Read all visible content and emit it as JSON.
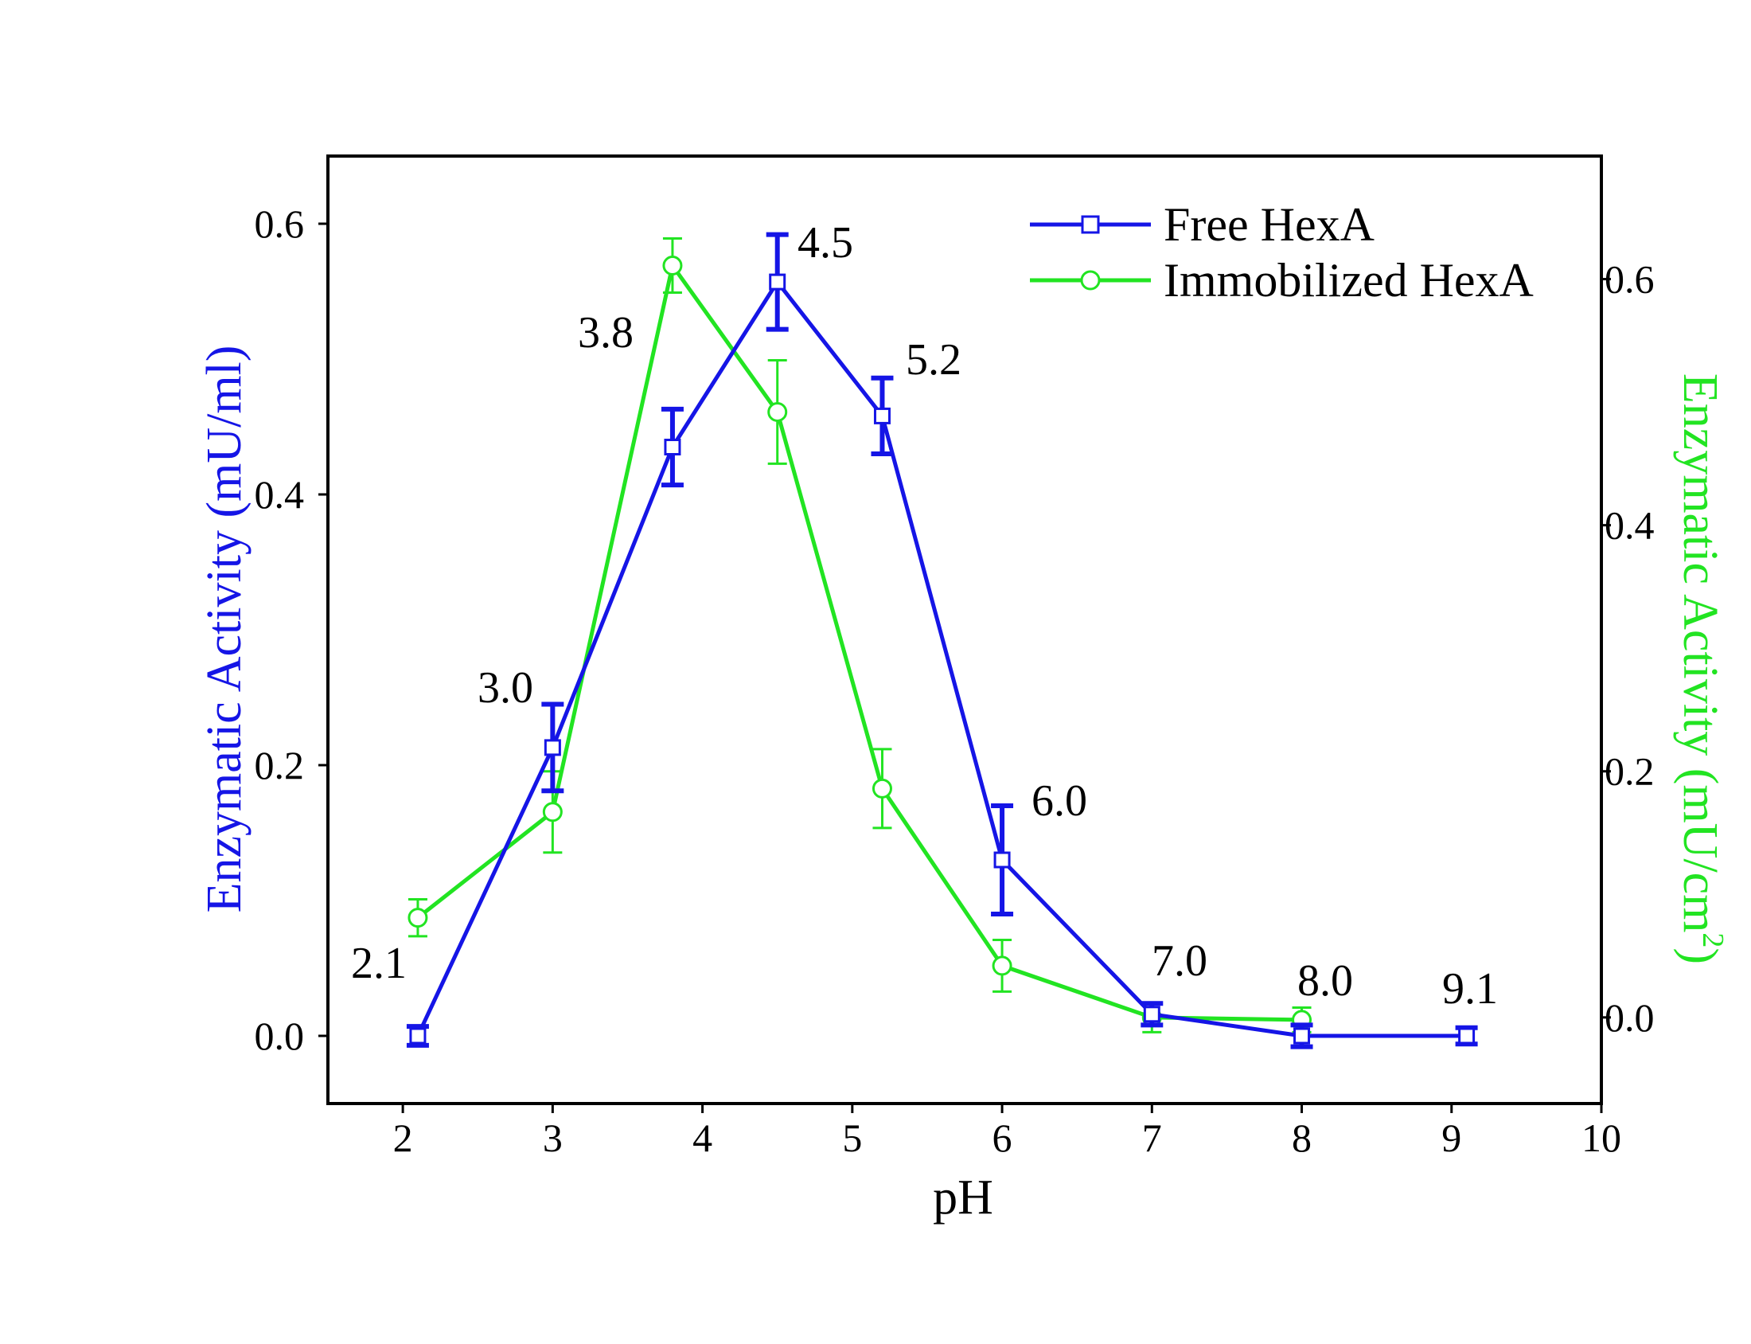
{
  "chart_data": {
    "type": "line",
    "title": "",
    "xlabel": "pH",
    "ylabel_left": "Enzymatic Activity (mU/ml)",
    "ylabel_right": "Enzymatic Activity (mU/cm",
    "ylabel_right_superscript": "2",
    "ylabel_right_suffix": ")",
    "xlim": [
      1.5,
      10
    ],
    "ylim_left": [
      -0.05,
      0.65
    ],
    "ylim_right": [
      -0.07,
      0.7
    ],
    "x_ticks": [
      "2",
      "3",
      "4",
      "5",
      "6",
      "7",
      "8",
      "9",
      "10"
    ],
    "y_ticks_left": [
      "0.0",
      "0.2",
      "0.4",
      "0.6"
    ],
    "y_ticks_right": [
      "0.0",
      "0.2",
      "0.4",
      "0.6"
    ],
    "legend_position": "top-right",
    "series": [
      {
        "name": "Free HexA",
        "axis": "left",
        "color": "#1515e6",
        "marker": "square",
        "x": [
          2.1,
          3.0,
          3.8,
          4.5,
          5.2,
          6.0,
          7.0,
          8.0,
          9.1
        ],
        "y": [
          0.0,
          0.213,
          0.435,
          0.557,
          0.458,
          0.13,
          0.016,
          0.0,
          0.0
        ],
        "err": [
          0.007,
          0.032,
          0.028,
          0.035,
          0.028,
          0.04,
          0.008,
          0.008,
          0.006
        ]
      },
      {
        "name": "Immobilized HexA",
        "axis": "right",
        "color": "#22e422",
        "marker": "circle",
        "x": [
          2.1,
          3.0,
          3.8,
          4.5,
          5.2,
          6.0,
          7.0,
          8.0
        ],
        "y": [
          0.081,
          0.167,
          0.611,
          0.492,
          0.186,
          0.042,
          0.0,
          -0.002
        ],
        "err": [
          0.015,
          0.033,
          0.022,
          0.042,
          0.032,
          0.021,
          0.012,
          0.01
        ]
      }
    ],
    "point_labels": [
      "2.1",
      "3.0",
      "3.8",
      "4.5",
      "5.2",
      "6.0",
      "7.0",
      "8.0",
      "9.1"
    ]
  }
}
